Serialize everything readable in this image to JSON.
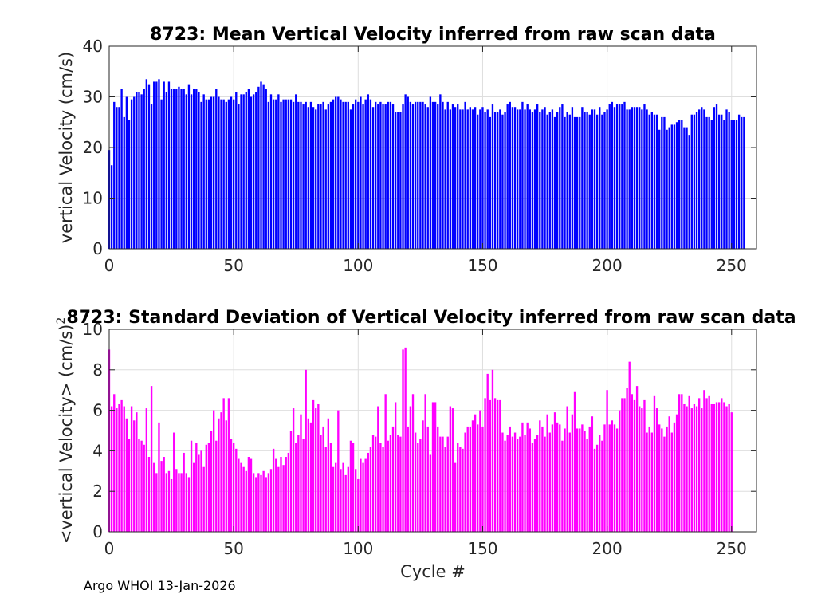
{
  "footer": {
    "text": "Argo WHOI 13-Jan-2026"
  },
  "colors": {
    "mean_bars": "#0000ff",
    "std_bars": "#ff00ff",
    "grid": "#dedede",
    "axis": "#262626"
  },
  "chart_data": [
    {
      "type": "bar",
      "title": "8723: Mean Vertical Velocity inferred from raw scan data",
      "xlabel": "",
      "ylabel": "vertical Velocity (cm/s)",
      "xlim": [
        0,
        260
      ],
      "ylim": [
        0,
        40
      ],
      "xticks": [
        0,
        50,
        100,
        150,
        200,
        250
      ],
      "yticks": [
        0,
        10,
        20,
        30,
        40
      ],
      "grid": true,
      "x_start": 0,
      "values": [
        19.5,
        16.5,
        29,
        28,
        28,
        31.5,
        26,
        30,
        25.5,
        29.5,
        30,
        31,
        31,
        30.5,
        31.5,
        33.5,
        32.5,
        28.5,
        33,
        33,
        33.5,
        29.5,
        33,
        31,
        33,
        31.5,
        31.5,
        31.5,
        32,
        31.5,
        31.5,
        30.5,
        32.5,
        30.5,
        31.5,
        31.5,
        31,
        29,
        30.5,
        29.5,
        29.5,
        30,
        30,
        31.5,
        30,
        29.5,
        29.5,
        29,
        29.5,
        30,
        29.5,
        31,
        28.5,
        30.5,
        30.5,
        31,
        31.5,
        30,
        30.5,
        31,
        32,
        33,
        32.5,
        31.5,
        29,
        30.5,
        29.5,
        29.5,
        30.5,
        29,
        29.5,
        29.5,
        29.5,
        29.5,
        29,
        30.5,
        29,
        29,
        28.5,
        29,
        28,
        29,
        28,
        27.5,
        28.5,
        28.5,
        29,
        27.5,
        28.5,
        29,
        29.5,
        30,
        30,
        29.5,
        29,
        29,
        29,
        27.5,
        28.5,
        29.5,
        29,
        30,
        28.5,
        29.5,
        30.5,
        29.5,
        28,
        29,
        28.5,
        29,
        28.5,
        28.5,
        29,
        29,
        28.5,
        27,
        27,
        27,
        28.5,
        30.5,
        30,
        29,
        28.5,
        29,
        29,
        29,
        29,
        28.5,
        28,
        30,
        29,
        29,
        28.5,
        30.5,
        29,
        27.5,
        29,
        27.5,
        28.5,
        28,
        28.5,
        27.5,
        27.5,
        29,
        27.5,
        28,
        27.5,
        28,
        26.5,
        27.5,
        28,
        27,
        27.5,
        26,
        28.5,
        27,
        27,
        27.5,
        26.5,
        27,
        28.5,
        29,
        28,
        28,
        27.5,
        27.5,
        29,
        27.5,
        28.5,
        27.5,
        27,
        27.5,
        28.5,
        27,
        27.5,
        28,
        26.5,
        27,
        27.5,
        26,
        27,
        28,
        28.5,
        26,
        27,
        26.5,
        28,
        26,
        26,
        26,
        28,
        27,
        27,
        26.5,
        27.5,
        27.5,
        26.5,
        28,
        26.5,
        27,
        27.5,
        28.5,
        29,
        28,
        28.5,
        28.5,
        28.5,
        29,
        27.5,
        27.5,
        28,
        28,
        28,
        28,
        27.5,
        28.5,
        27.5,
        26.5,
        27,
        26.5,
        26.5,
        23.5,
        26,
        26,
        23.5,
        24,
        24.5,
        24.5,
        25,
        25.5,
        25.5,
        24,
        24,
        22.5,
        26.5,
        26.5,
        27,
        27.5,
        28,
        27.5,
        26,
        26,
        25.5,
        28,
        28.5,
        26.5,
        26.5,
        25.5,
        27.5,
        27,
        25.5,
        25.5,
        25.5,
        26.5,
        26,
        26
      ]
    },
    {
      "type": "bar",
      "title": "8723: Standard Deviation of Vertical Velocity inferred from raw scan data",
      "xlabel": "Cycle #",
      "ylabel": "<vertical Velocity> (cm/s)",
      "ylabel_superscript": "2",
      "xlim": [
        0,
        260
      ],
      "ylim": [
        0,
        10
      ],
      "xticks": [
        0,
        50,
        100,
        150,
        200,
        250
      ],
      "yticks": [
        0,
        2,
        4,
        6,
        8,
        10
      ],
      "grid": true,
      "x_start": 0,
      "values": [
        9,
        6.2,
        6.8,
        6.1,
        6.3,
        6.5,
        6.2,
        5.6,
        4.6,
        6.2,
        5.5,
        5.9,
        4.6,
        4.5,
        4.3,
        6.1,
        3.7,
        7.2,
        3.4,
        2.9,
        5.4,
        3.5,
        3.7,
        2.9,
        3,
        2.6,
        4.9,
        3.1,
        2.9,
        2.9,
        3.9,
        2.9,
        2.7,
        4.5,
        3.4,
        4.4,
        3.8,
        4,
        3.2,
        4.3,
        4.4,
        5,
        6,
        4.5,
        5.6,
        5.9,
        6.6,
        5.5,
        6.6,
        4.6,
        4.4,
        4.1,
        3.6,
        3.4,
        3.2,
        3,
        3.7,
        3.6,
        2.9,
        2.7,
        2.9,
        2.8,
        3,
        2.7,
        2.9,
        3.1,
        4.1,
        3.6,
        3.2,
        3.7,
        3.3,
        3.7,
        3.9,
        5,
        6.1,
        4.4,
        4.8,
        5.8,
        4.6,
        8,
        5.6,
        5.4,
        6.5,
        6.1,
        6.3,
        4.8,
        5.2,
        4.2,
        5.6,
        4.4,
        3.2,
        3.4,
        6,
        3.1,
        3.4,
        2.8,
        3.2,
        4.5,
        4.4,
        3.1,
        2.6,
        3.6,
        3.4,
        3.6,
        3.9,
        4.2,
        4.8,
        4.7,
        6.2,
        4.4,
        4.2,
        6.8,
        4.5,
        4.8,
        5.2,
        6.4,
        4.8,
        4.7,
        9,
        9.1,
        5.2,
        6.2,
        6.8,
        4.9,
        4.4,
        4.6,
        5.5,
        6.8,
        5.2,
        3.8,
        6.4,
        6.4,
        5.2,
        4.7,
        4.7,
        4.2,
        4.7,
        6.2,
        6.1,
        3.4,
        4.4,
        4.2,
        4.1,
        4.9,
        5.2,
        5.2,
        5.5,
        5.8,
        5.3,
        6,
        5.2,
        6.6,
        7.8,
        6.5,
        8,
        6.6,
        6.5,
        6.5,
        4.9,
        4.5,
        4.8,
        5.2,
        4.7,
        4.9,
        4.6,
        4.7,
        5.4,
        4.8,
        5.4,
        5.1,
        4.4,
        4.6,
        4.8,
        5.5,
        5.2,
        4.7,
        5.8,
        4.9,
        5.3,
        5.9,
        5.4,
        5.3,
        4.5,
        5.1,
        6.2,
        4.9,
        5.8,
        6.9,
        5.1,
        5.1,
        5.3,
        5,
        4.6,
        5.2,
        5.7,
        4.1,
        4.3,
        4.8,
        4.5,
        5.3,
        7,
        5.3,
        5.5,
        5.3,
        5.1,
        6,
        6.6,
        6.6,
        7.1,
        8.4,
        6.8,
        6.5,
        7.2,
        6.2,
        6.1,
        6.5,
        4.9,
        5.2,
        4.9,
        6.7,
        6.1,
        5.3,
        5.1,
        4.7,
        5.2,
        5.7,
        4.9,
        5.4,
        5.8,
        6.8,
        6.8,
        6.3,
        6.2,
        6.7,
        6.1,
        6.3,
        6.2,
        6.6,
        6.1,
        7,
        6.6,
        6.7,
        6.3,
        6.3,
        6.4,
        6.4,
        6.6,
        6.4,
        6.2,
        6.3,
        5.9
      ]
    }
  ]
}
